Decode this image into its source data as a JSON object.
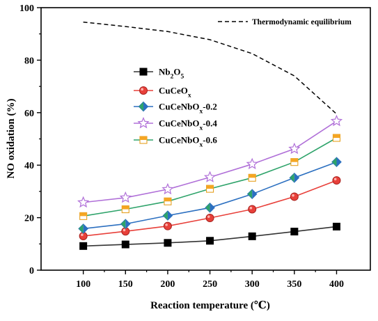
{
  "chart_data": {
    "type": "line",
    "xlabel": "Reaction temperature (℃)",
    "ylabel": "NO oxidation (%)",
    "x": [
      100,
      150,
      200,
      250,
      300,
      350,
      400
    ],
    "xlim": [
      50,
      440
    ],
    "ylim": [
      0,
      100
    ],
    "xticks": [
      100,
      150,
      200,
      250,
      300,
      350,
      400
    ],
    "yticks": [
      0,
      20,
      40,
      60,
      80,
      100
    ],
    "grid": false,
    "legend_position": "left",
    "series": [
      {
        "name": "Nb2O5",
        "sub": "2",
        "sub2": "5",
        "color": "#333333",
        "marker": "square",
        "values": [
          9.2,
          9.8,
          10.4,
          11.2,
          12.9,
          14.7,
          16.6
        ]
      },
      {
        "name": "CuCeOx",
        "color": "#e8403a",
        "marker": "circle",
        "values": [
          13.0,
          14.8,
          16.8,
          19.9,
          23.2,
          28.0,
          34.2
        ]
      },
      {
        "name": "CuCeNbOx-0.2",
        "color": "#2b6fc0",
        "marker": "diamond",
        "values": [
          15.8,
          17.6,
          20.8,
          23.8,
          29.0,
          35.2,
          41.2
        ]
      },
      {
        "name": "CuCeNbOx-0.4",
        "color": "#b070d8",
        "marker": "star",
        "values": [
          25.8,
          27.6,
          30.8,
          35.4,
          40.4,
          46.2,
          56.8
        ]
      },
      {
        "name": "CuCeNbOx-0.6",
        "color": "#2ea36a",
        "marker": "square-half",
        "values": [
          20.6,
          23.2,
          26.2,
          31.0,
          35.2,
          41.2,
          50.4
        ]
      }
    ],
    "equilibrium": {
      "name": "Thermodynamic equilibrium",
      "style": "dashed",
      "color": "#000000",
      "x": [
        100,
        150,
        200,
        250,
        300,
        350,
        400
      ],
      "values": [
        94.5,
        92.8,
        90.9,
        87.8,
        82.5,
        74.0,
        59.5
      ]
    }
  }
}
